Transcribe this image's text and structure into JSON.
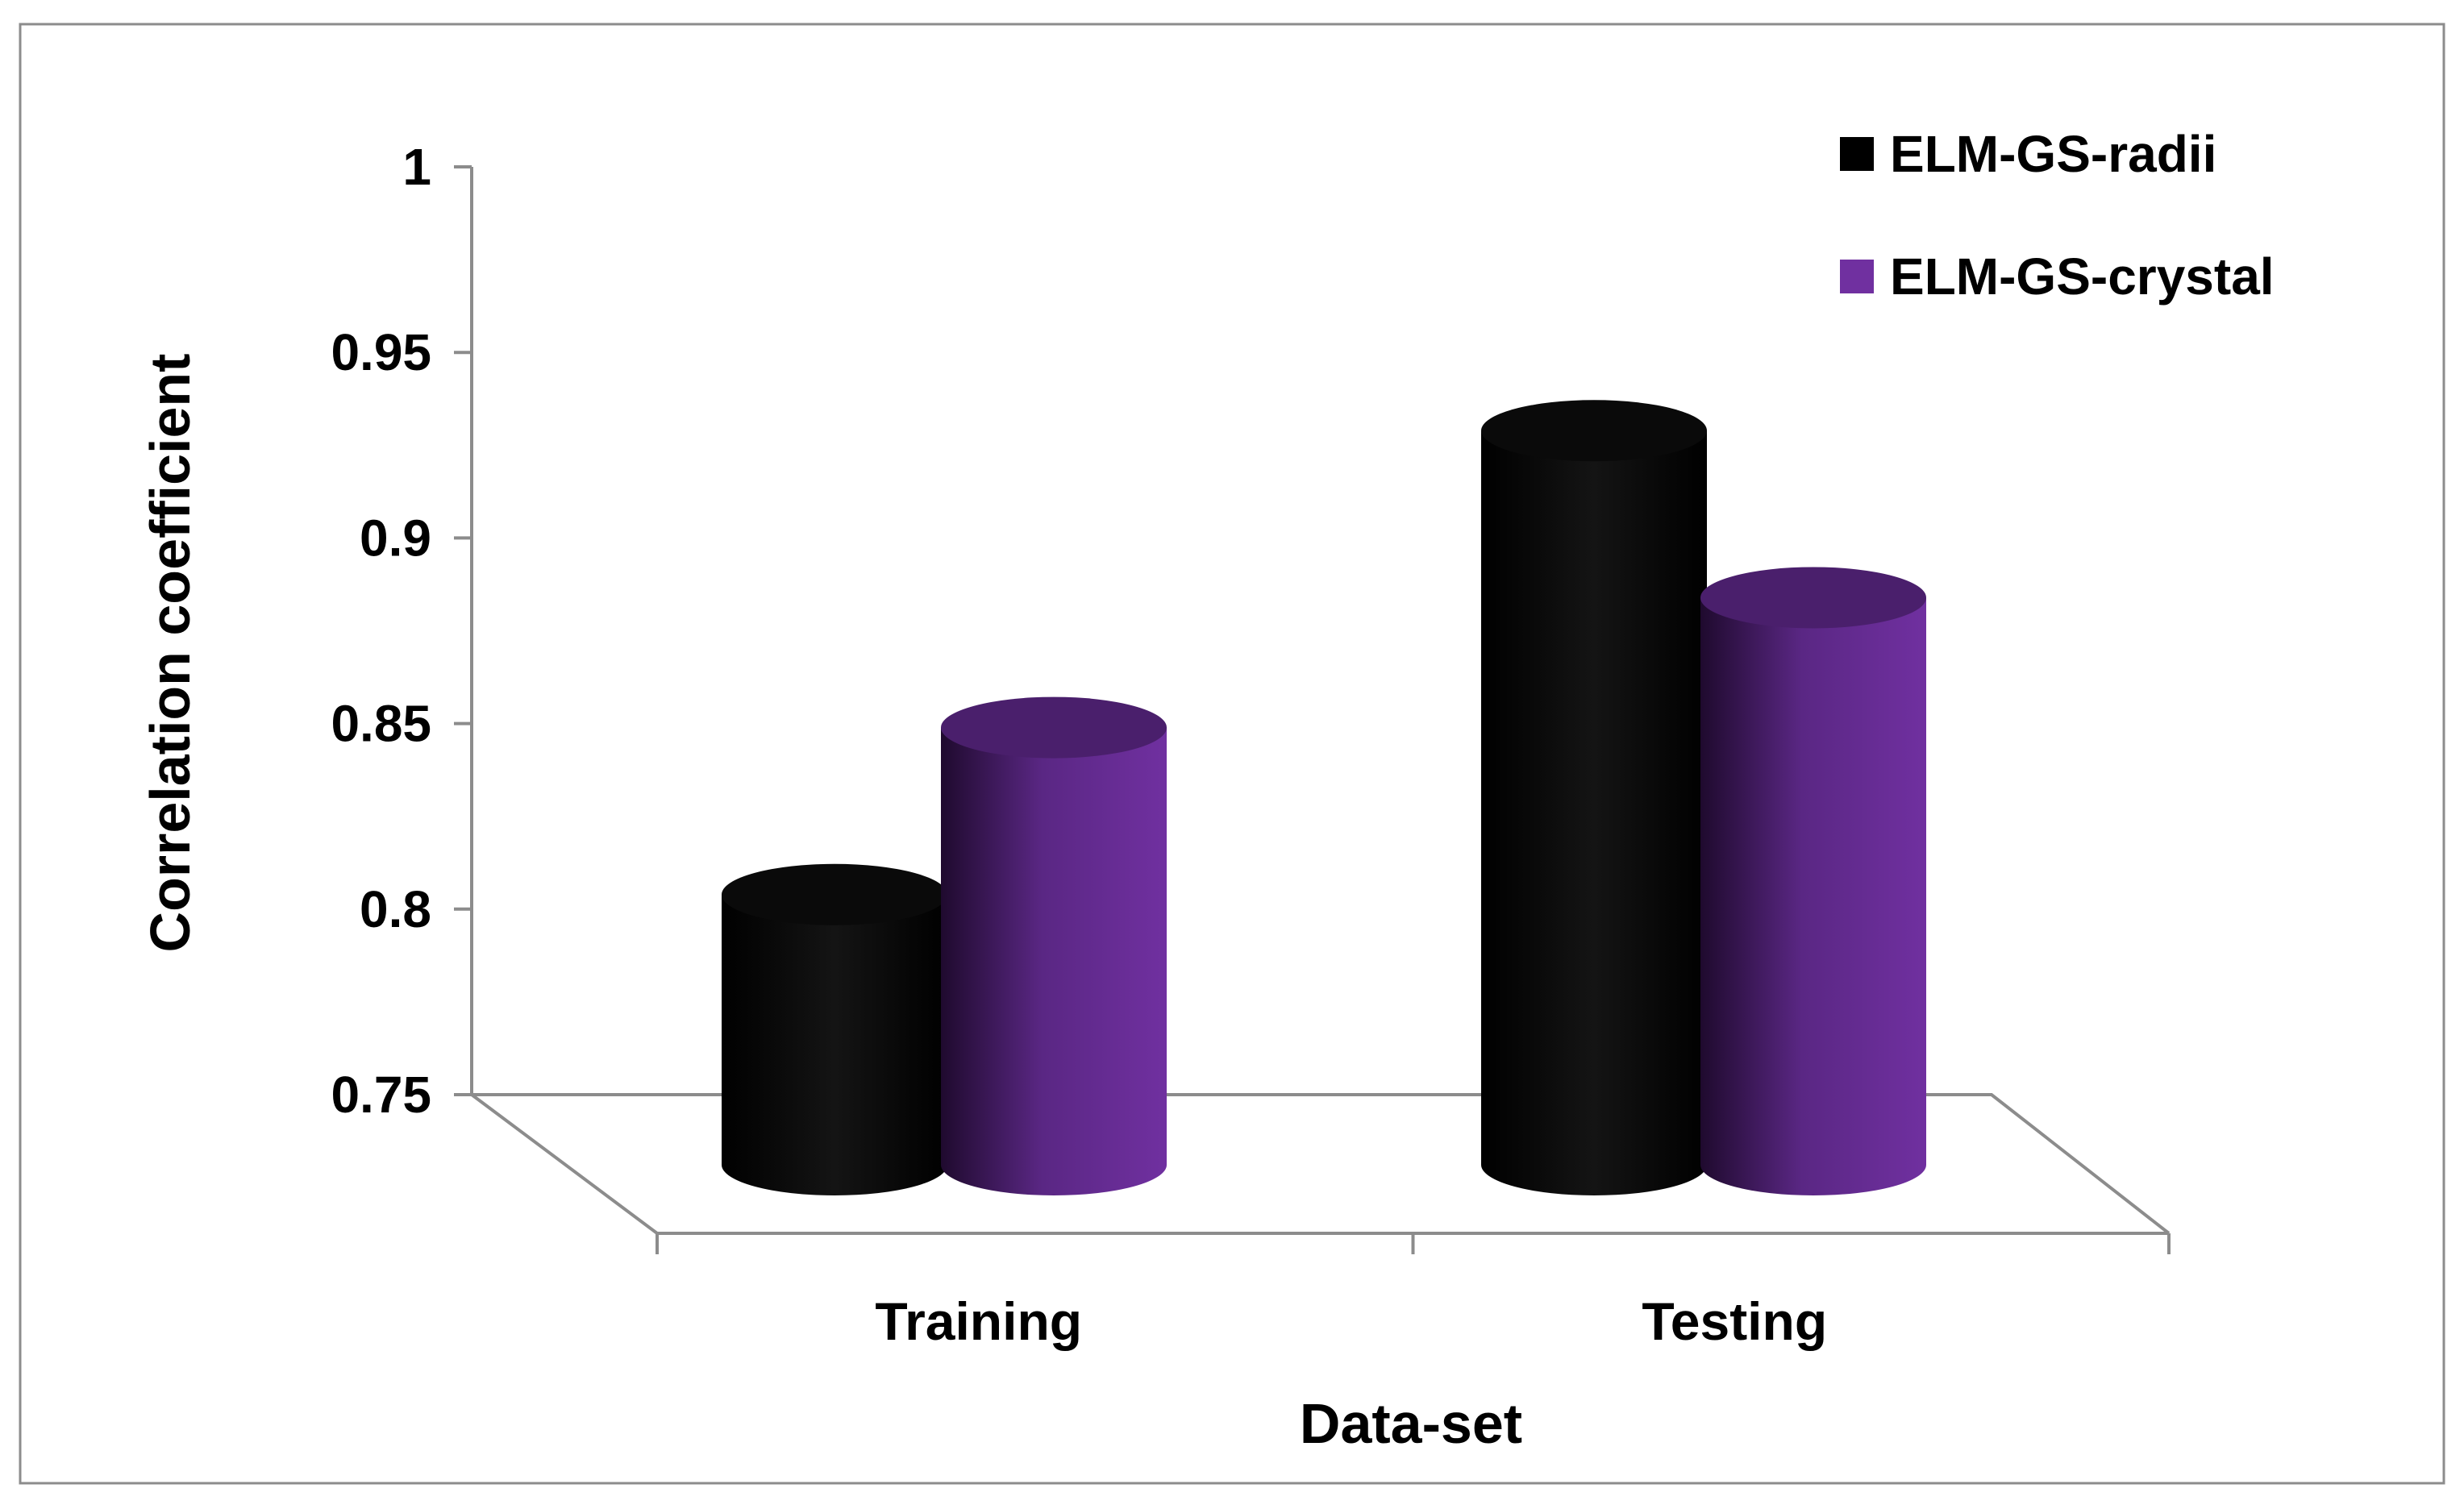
{
  "chart_data": {
    "type": "bar",
    "title": "",
    "xlabel": "Data-set",
    "ylabel": "Correlation coefficient",
    "categories": [
      "Training",
      "Testing"
    ],
    "series": [
      {
        "name": "ELM-GS-radii",
        "values": [
          0.81,
          0.935
        ],
        "color": "#000000"
      },
      {
        "name": "ELM-GS-crystal",
        "values": [
          0.855,
          0.89
        ],
        "color": "#7030a0"
      }
    ],
    "ylim": [
      0.75,
      1
    ],
    "yticks": [
      0.75,
      0.8,
      0.85,
      0.9,
      0.95,
      1
    ],
    "ytick_labels": [
      "0.75",
      "0.8",
      "0.85",
      "0.9",
      "0.95",
      "1"
    ],
    "style": "3d-cylinder",
    "grid": false,
    "legend_position": "top-right"
  }
}
